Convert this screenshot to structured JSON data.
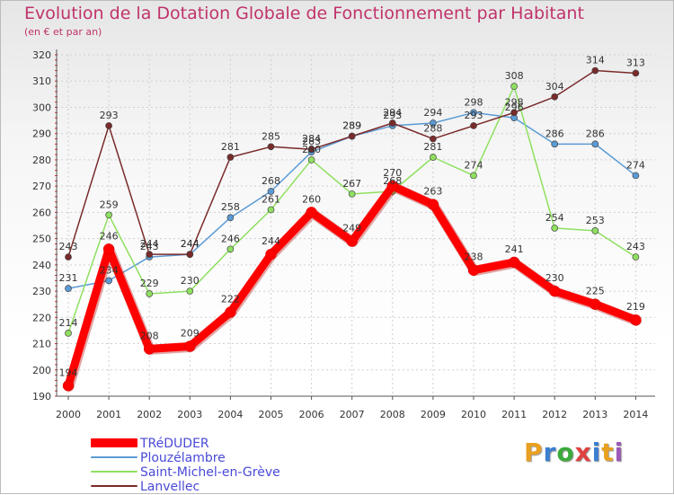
{
  "header": {
    "title": "Evolution de la Dotation Globale de Fonctionnement par Habitant",
    "subtitle": "(en € et par an)"
  },
  "logo": {
    "text": "Proxiti",
    "letters": [
      "P",
      "r",
      "o",
      "x",
      "i",
      "t",
      "i"
    ],
    "colors": [
      "#e8a020",
      "#3a7fd0",
      "#3aaa3a",
      "#e04040",
      "#3a7fd0",
      "#e8a020",
      "#9b59b6"
    ]
  },
  "chart_data": {
    "type": "line",
    "title": "Evolution de la Dotation Globale de Fonctionnement par Habitant",
    "subtitle": "(en € et par an)",
    "xlabel": "",
    "ylabel": "",
    "x": [
      "2000",
      "2001",
      "2002",
      "2003",
      "2004",
      "2005",
      "2006",
      "2007",
      "2008",
      "2009",
      "2010",
      "2011",
      "2012",
      "2013",
      "2014"
    ],
    "ylim": [
      190,
      320
    ],
    "yticks": [
      190,
      200,
      210,
      220,
      230,
      240,
      250,
      260,
      270,
      280,
      290,
      300,
      310,
      320
    ],
    "grid": true,
    "legend_position": "bottom-left",
    "series": [
      {
        "name": "TRéDUDER",
        "color": "#ff0000",
        "emphasis": true,
        "values": [
          194,
          246,
          208,
          209,
          222,
          244,
          260,
          249,
          270,
          263,
          238,
          241,
          230,
          225,
          219
        ]
      },
      {
        "name": "Plouzélambre",
        "color": "#5b9bd5",
        "emphasis": false,
        "values": [
          231,
          234,
          243,
          244,
          258,
          268,
          283,
          289,
          293,
          294,
          298,
          296,
          286,
          286,
          274
        ]
      },
      {
        "name": "Saint-Michel-en-Grève",
        "color": "#8fe060",
        "emphasis": false,
        "values": [
          214,
          259,
          229,
          230,
          246,
          261,
          280,
          267,
          268,
          281,
          274,
          308,
          254,
          253,
          243
        ]
      },
      {
        "name": "Lanvellec",
        "color": "#7a2a2a",
        "emphasis": false,
        "values": [
          243,
          293,
          244,
          244,
          281,
          285,
          284,
          289,
          294,
          288,
          293,
          298,
          304,
          314,
          313
        ]
      }
    ]
  }
}
